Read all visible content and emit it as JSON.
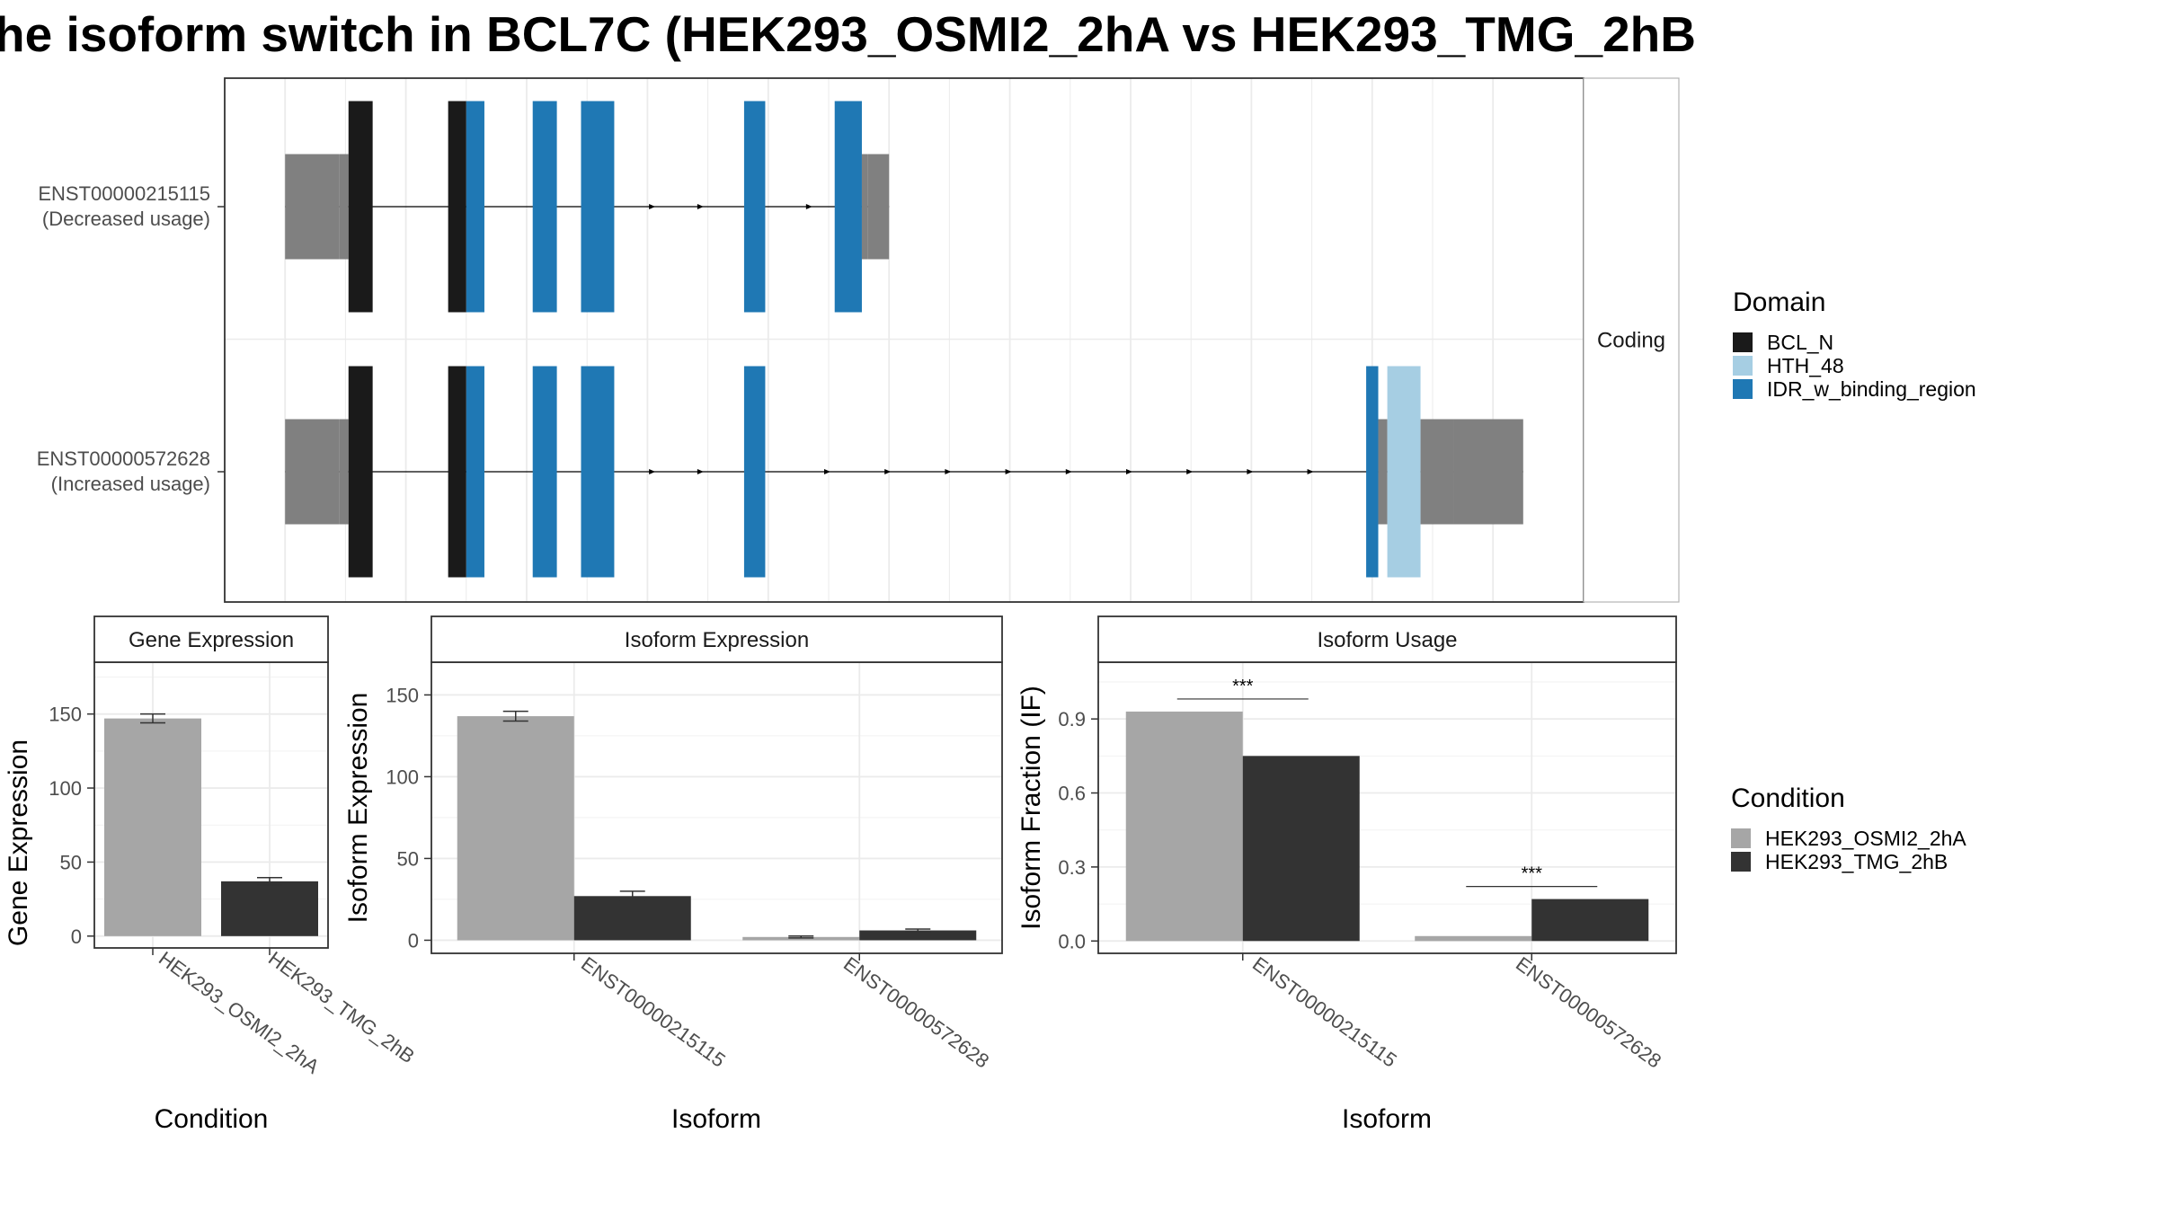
{
  "title": "he isoform switch in BCL7C (HEK293_OSMI2_2hA vs HEK293_TMG_2hB",
  "colors": {
    "BCL_N": "#1a1a1a",
    "HTH_48": "#a6cee3",
    "IDR_w_binding_region": "#1f78b4",
    "utr": "#808080",
    "cond1": "#a6a6a6",
    "cond2": "#333333"
  },
  "chart_data": [
    {
      "type": "transcript-structure",
      "facet_label": "Coding",
      "transcripts": [
        {
          "id": "ENST00000215115",
          "label_line1": "ENST00000215115",
          "label_line2": "(Decreased usage)",
          "exons": [
            {
              "start": 0.0,
              "end": 0.9,
              "kind": "utr"
            },
            {
              "start": 0.9,
              "end": 1.05,
              "kind": "utr"
            },
            {
              "start": 1.05,
              "end": 1.45,
              "kind": "BCL_N"
            },
            {
              "start": 2.7,
              "end": 3.0,
              "kind": "BCL_N"
            },
            {
              "start": 3.0,
              "end": 3.3,
              "kind": "IDR_w_binding_region"
            },
            {
              "start": 4.1,
              "end": 4.5,
              "kind": "IDR_w_binding_region"
            },
            {
              "start": 4.9,
              "end": 5.45,
              "kind": "IDR_w_binding_region"
            },
            {
              "start": 7.6,
              "end": 7.95,
              "kind": "IDR_w_binding_region"
            },
            {
              "start": 9.1,
              "end": 9.55,
              "kind": "IDR_w_binding_region"
            },
            {
              "start": 9.55,
              "end": 9.65,
              "kind": "utr"
            },
            {
              "start": 9.65,
              "end": 10.0,
              "kind": "utr"
            }
          ],
          "arrows": [
            6.1,
            6.9,
            7.8,
            8.7
          ]
        },
        {
          "id": "ENST00000572628",
          "label_line1": "ENST00000572628",
          "label_line2": "(Increased usage)",
          "exons": [
            {
              "start": 0.0,
              "end": 0.9,
              "kind": "utr"
            },
            {
              "start": 0.9,
              "end": 1.05,
              "kind": "utr"
            },
            {
              "start": 1.05,
              "end": 1.45,
              "kind": "BCL_N"
            },
            {
              "start": 2.7,
              "end": 3.0,
              "kind": "BCL_N"
            },
            {
              "start": 3.0,
              "end": 3.3,
              "kind": "IDR_w_binding_region"
            },
            {
              "start": 4.1,
              "end": 4.5,
              "kind": "IDR_w_binding_region"
            },
            {
              "start": 4.9,
              "end": 5.45,
              "kind": "IDR_w_binding_region"
            },
            {
              "start": 7.6,
              "end": 7.95,
              "kind": "IDR_w_binding_region"
            },
            {
              "start": 17.9,
              "end": 18.1,
              "kind": "IDR_w_binding_region"
            },
            {
              "start": 18.1,
              "end": 18.25,
              "kind": "utr"
            },
            {
              "start": 18.25,
              "end": 18.8,
              "kind": "HTH_48"
            },
            {
              "start": 18.8,
              "end": 19.35,
              "kind": "utr"
            },
            {
              "start": 19.35,
              "end": 20.5,
              "kind": "utr"
            }
          ],
          "arrows": [
            6.1,
            6.9,
            7.8,
            9.0,
            10.0,
            11.0,
            12.0,
            13.0,
            14.0,
            15.0,
            16.0,
            17.0
          ]
        }
      ],
      "xlim": [
        -1.0,
        21.5
      ]
    },
    {
      "type": "bar",
      "facet_label": "Gene Expression",
      "xlabel": "Condition",
      "ylabel": "Gene Expression",
      "categories": [
        "HEK293_OSMI2_2hA",
        "HEK293_TMG_2hB"
      ],
      "values": [
        147,
        37
      ],
      "errors": [
        3,
        2.5
      ],
      "ylim": [
        -8,
        185
      ],
      "yticks": [
        0,
        50,
        100,
        150
      ]
    },
    {
      "type": "bar",
      "facet_label": "Isoform Expression",
      "xlabel": "Isoform",
      "ylabel": "Isoform Expression",
      "categories": [
        "ENST00000215115",
        "ENST00000572628"
      ],
      "series": [
        {
          "name": "HEK293_OSMI2_2hA",
          "values": [
            137,
            2
          ],
          "errors": [
            3,
            0.6
          ]
        },
        {
          "name": "HEK293_TMG_2hB",
          "values": [
            27,
            6
          ],
          "errors": [
            3,
            0.8
          ]
        }
      ],
      "ylim": [
        -8,
        170
      ],
      "yticks": [
        0,
        50,
        100,
        150
      ]
    },
    {
      "type": "bar",
      "facet_label": "Isoform Usage",
      "xlabel": "Isoform",
      "ylabel": "Isoform Fraction (IF)",
      "categories": [
        "ENST00000215115",
        "ENST00000572628"
      ],
      "series": [
        {
          "name": "HEK293_OSMI2_2hA",
          "values": [
            0.93,
            0.02
          ]
        },
        {
          "name": "HEK293_TMG_2hB",
          "values": [
            0.75,
            0.17
          ]
        }
      ],
      "significance": [
        "***",
        "***"
      ],
      "ylim": [
        -0.05,
        1.13
      ],
      "yticks": [
        0.0,
        0.3,
        0.6,
        0.9
      ],
      "ytick_labels": [
        "0.0",
        "0.3",
        "0.6",
        "0.9"
      ]
    }
  ],
  "legend_domain": {
    "title": "Domain",
    "items": [
      {
        "label": "BCL_N",
        "key": "BCL_N"
      },
      {
        "label": "HTH_48",
        "key": "HTH_48"
      },
      {
        "label": "IDR_w_binding_region",
        "key": "IDR_w_binding_region"
      }
    ]
  },
  "legend_condition": {
    "title": "Condition",
    "items": [
      {
        "label": "HEK293_OSMI2_2hA",
        "key": "cond1"
      },
      {
        "label": "HEK293_TMG_2hB",
        "key": "cond2"
      }
    ]
  }
}
